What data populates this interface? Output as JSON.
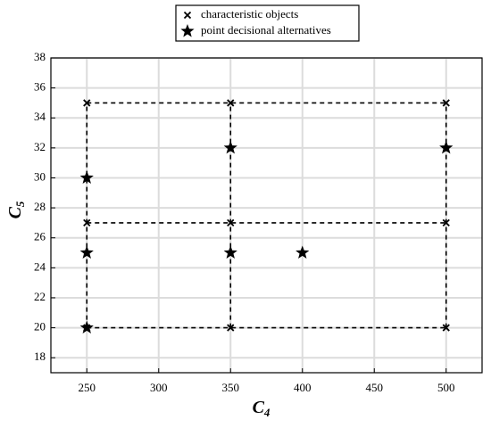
{
  "chart_data": {
    "type": "scatter",
    "xlabel": {
      "text": "C",
      "subscript": "4"
    },
    "ylabel": {
      "text": "C",
      "subscript": "5"
    },
    "xlim": [
      225,
      525
    ],
    "xticks": [
      250,
      300,
      350,
      400,
      450,
      500
    ],
    "ylim": [
      17,
      38
    ],
    "yticks": [
      18,
      20,
      22,
      24,
      26,
      28,
      30,
      32,
      34,
      36,
      38
    ],
    "grid": true,
    "legend": "top",
    "series": [
      {
        "name": "characteristic objects",
        "marker": "x",
        "color": "#000000",
        "connect": true,
        "x": [
          250,
          250,
          250,
          350,
          350,
          350,
          500,
          500,
          500
        ],
        "values": [
          20,
          27,
          35,
          20,
          27,
          35,
          20,
          27,
          35
        ]
      },
      {
        "name": "point decisional alternatives",
        "marker": "star",
        "color": "#000000",
        "connect": false,
        "x": [
          250,
          250,
          250,
          350,
          350,
          400,
          500
        ],
        "values": [
          30,
          25,
          20,
          32,
          25,
          25,
          32
        ]
      }
    ]
  }
}
